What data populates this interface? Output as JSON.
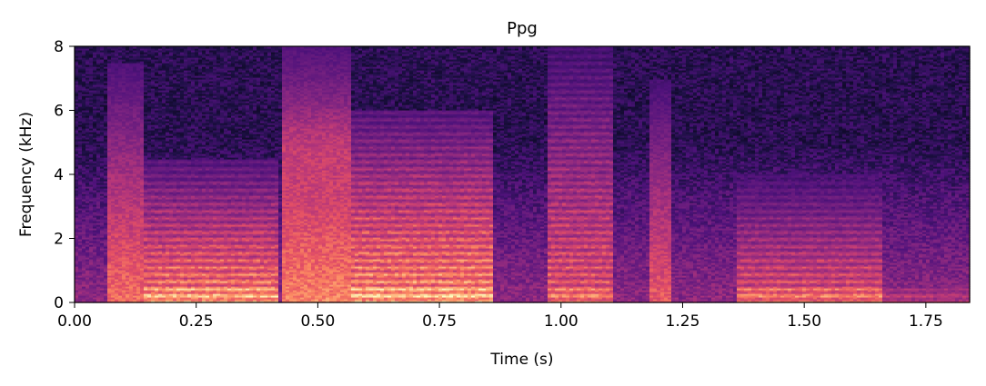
{
  "chart_data": {
    "type": "heatmap",
    "subtype": "spectrogram",
    "colormap": "magma",
    "title": "Ppg",
    "xlabel": "Time (s)",
    "ylabel": "Frequency (kHz)",
    "xlim": [
      0,
      1.84
    ],
    "ylim": [
      0,
      8
    ],
    "x_ticks": [
      0,
      0.25,
      0.5,
      0.75,
      1.0,
      1.25,
      1.5,
      1.75
    ],
    "x_tick_labels": [
      "0.00",
      "0.25",
      "0.50",
      "0.75",
      "1.00",
      "1.25",
      "1.50",
      "1.75"
    ],
    "y_ticks": [
      0,
      2,
      4,
      6,
      8
    ],
    "y_tick_labels": [
      "0",
      "2",
      "4",
      "6",
      "8"
    ],
    "grid": false,
    "segments": [
      {
        "start": 0.07,
        "end": 0.14,
        "kind": "fricative-burst",
        "max_freq_khz": 7.5,
        "intensity": 0.75
      },
      {
        "start": 0.14,
        "end": 0.42,
        "kind": "voiced",
        "max_freq_khz": 4.5,
        "intensity": 0.92
      },
      {
        "start": 0.43,
        "end": 0.57,
        "kind": "fricative",
        "max_freq_khz": 8.0,
        "intensity": 0.95
      },
      {
        "start": 0.57,
        "end": 0.86,
        "kind": "voiced",
        "max_freq_khz": 6.0,
        "intensity": 0.95
      },
      {
        "start": 0.97,
        "end": 1.11,
        "kind": "voiced",
        "max_freq_khz": 8.0,
        "intensity": 0.78
      },
      {
        "start": 1.18,
        "end": 1.23,
        "kind": "burst",
        "max_freq_khz": 7.0,
        "intensity": 0.7
      },
      {
        "start": 1.36,
        "end": 1.66,
        "kind": "voiced",
        "max_freq_khz": 4.0,
        "intensity": 0.78
      },
      {
        "start": 1.66,
        "end": 1.84,
        "kind": "voiced",
        "max_freq_khz": 1.5,
        "intensity": 0.55
      }
    ]
  }
}
